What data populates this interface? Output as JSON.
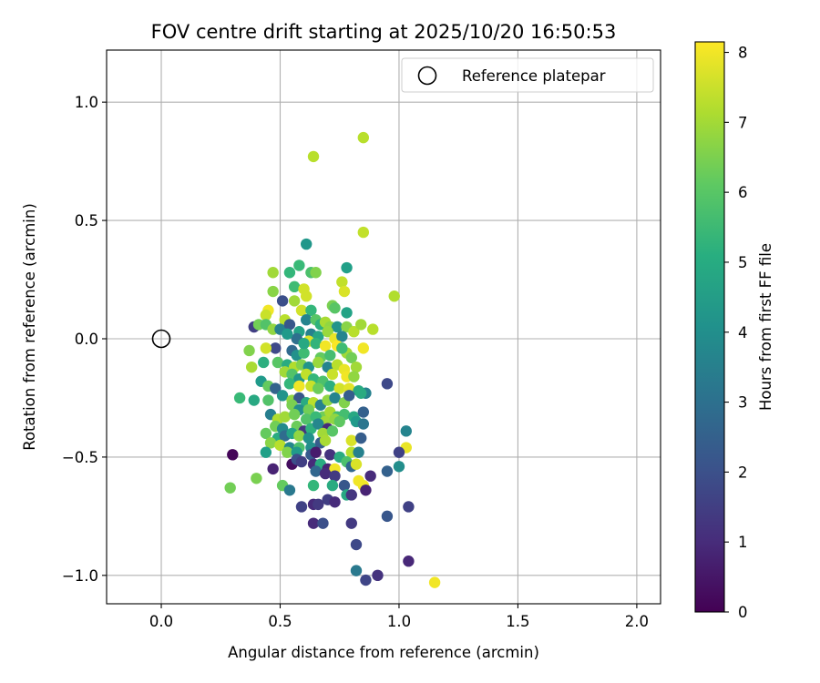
{
  "chart_data": {
    "type": "scatter",
    "title": "FOV centre drift starting at 2025/10/20 16:50:53",
    "xlabel": "Angular distance from reference (arcmin)",
    "ylabel": "Rotation from reference (arcmin)",
    "xlim": [
      -0.23,
      2.1
    ],
    "ylim": [
      -1.12,
      1.22
    ],
    "xticks": [
      0.0,
      0.5,
      1.0,
      1.5,
      2.0
    ],
    "xtick_labels": [
      "0.0",
      "0.5",
      "1.0",
      "1.5",
      "2.0"
    ],
    "yticks": [
      -1.0,
      -0.5,
      0.0,
      0.5,
      1.0
    ],
    "ytick_labels": [
      "−1.0",
      "−0.5",
      "0.0",
      "0.5",
      "1.0"
    ],
    "grid": true,
    "reference": {
      "x": 0.0,
      "y": 0.0,
      "label": "Reference platepar",
      "marker": "open-circle"
    },
    "legend": {
      "position": "upper-right",
      "entries": [
        "Reference platepar"
      ]
    },
    "colorbar": {
      "label": "Hours from first FF file",
      "colormap": "viridis",
      "range": [
        0,
        8.15
      ],
      "ticks": [
        0,
        1,
        2,
        3,
        4,
        5,
        6,
        7,
        8
      ],
      "tick_labels": [
        "0",
        "1",
        "2",
        "3",
        "4",
        "5",
        "6",
        "7",
        "8"
      ]
    },
    "points": [
      [
        0.64,
        0.77,
        7.3
      ],
      [
        0.85,
        0.85,
        7.3
      ],
      [
        0.85,
        0.45,
        7.4
      ],
      [
        0.61,
        0.4,
        4.3
      ],
      [
        0.98,
        0.18,
        7.2
      ],
      [
        0.47,
        0.28,
        7.0
      ],
      [
        0.58,
        0.31,
        5.5
      ],
      [
        0.54,
        0.28,
        5.4
      ],
      [
        0.63,
        0.28,
        5.8
      ],
      [
        0.65,
        0.28,
        6.6
      ],
      [
        0.78,
        0.3,
        4.6
      ],
      [
        0.76,
        0.24,
        7.4
      ],
      [
        0.56,
        0.22,
        5.6
      ],
      [
        0.6,
        0.21,
        7.6
      ],
      [
        0.77,
        0.2,
        7.7
      ],
      [
        0.47,
        0.2,
        6.7
      ],
      [
        0.61,
        0.18,
        7.6
      ],
      [
        0.51,
        0.16,
        2.0
      ],
      [
        0.56,
        0.16,
        7.0
      ],
      [
        0.72,
        0.14,
        6.5
      ],
      [
        0.73,
        0.13,
        6.0
      ],
      [
        0.59,
        0.12,
        7.6
      ],
      [
        0.63,
        0.12,
        5.4
      ],
      [
        0.78,
        0.11,
        4.7
      ],
      [
        0.45,
        0.12,
        8.0
      ],
      [
        0.44,
        0.1,
        7.5
      ],
      [
        0.52,
        0.08,
        7.3
      ],
      [
        0.61,
        0.08,
        3.7
      ],
      [
        0.65,
        0.08,
        6.0
      ],
      [
        0.67,
        0.06,
        5.2
      ],
      [
        0.69,
        0.07,
        7.1
      ],
      [
        0.71,
        0.05,
        6.8
      ],
      [
        0.74,
        0.05,
        4.2
      ],
      [
        0.78,
        0.05,
        6.7
      ],
      [
        0.81,
        0.03,
        7.3
      ],
      [
        0.84,
        0.06,
        7.0
      ],
      [
        0.89,
        0.04,
        7.3
      ],
      [
        0.39,
        0.05,
        1.5
      ],
      [
        0.41,
        0.06,
        6.4
      ],
      [
        0.44,
        0.06,
        5.9
      ],
      [
        0.47,
        0.04,
        6.8
      ],
      [
        0.5,
        0.04,
        3.6
      ],
      [
        0.54,
        0.06,
        2.2
      ],
      [
        0.58,
        0.03,
        4.7
      ],
      [
        0.63,
        0.02,
        3.6
      ],
      [
        0.66,
        0.01,
        4.8
      ],
      [
        0.7,
        0.03,
        6.9
      ],
      [
        0.73,
        0.0,
        7.9
      ],
      [
        0.76,
        0.01,
        3.7
      ],
      [
        0.74,
        -0.03,
        8.1
      ],
      [
        0.62,
        -0.01,
        7.7
      ],
      [
        0.65,
        -0.02,
        5.3
      ],
      [
        0.69,
        -0.03,
        8.0
      ],
      [
        0.48,
        -0.04,
        1.8
      ],
      [
        0.44,
        -0.04,
        7.6
      ],
      [
        0.37,
        -0.05,
        6.6
      ],
      [
        0.55,
        -0.05,
        2.8
      ],
      [
        0.57,
        -0.07,
        4.1
      ],
      [
        0.6,
        -0.06,
        5.6
      ],
      [
        0.67,
        -0.08,
        6.2
      ],
      [
        0.71,
        -0.07,
        5.7
      ],
      [
        0.78,
        -0.06,
        7.0
      ],
      [
        0.85,
        -0.04,
        8.0
      ],
      [
        0.8,
        -0.08,
        6.4
      ],
      [
        0.43,
        -0.1,
        5.1
      ],
      [
        0.49,
        -0.1,
        6.0
      ],
      [
        0.53,
        -0.11,
        5.0
      ],
      [
        0.56,
        -0.12,
        7.2
      ],
      [
        0.59,
        -0.11,
        6.6
      ],
      [
        0.62,
        -0.12,
        4.2
      ],
      [
        0.66,
        -0.1,
        6.9
      ],
      [
        0.7,
        -0.12,
        3.7
      ],
      [
        0.74,
        -0.11,
        7.3
      ],
      [
        0.77,
        -0.13,
        7.9
      ],
      [
        0.82,
        -0.12,
        7.0
      ],
      [
        0.38,
        -0.12,
        7.1
      ],
      [
        0.52,
        -0.14,
        7.0
      ],
      [
        0.55,
        -0.15,
        5.9
      ],
      [
        0.58,
        -0.17,
        4.3
      ],
      [
        0.61,
        -0.15,
        7.4
      ],
      [
        0.64,
        -0.17,
        5.4
      ],
      [
        0.68,
        -0.18,
        5.8
      ],
      [
        0.72,
        -0.15,
        7.5
      ],
      [
        0.78,
        -0.16,
        8.0
      ],
      [
        0.81,
        -0.16,
        6.8
      ],
      [
        0.42,
        -0.18,
        4.4
      ],
      [
        0.45,
        -0.2,
        6.2
      ],
      [
        0.48,
        -0.21,
        2.6
      ],
      [
        0.54,
        -0.19,
        5.4
      ],
      [
        0.58,
        -0.2,
        8.0
      ],
      [
        0.63,
        -0.2,
        7.5
      ],
      [
        0.66,
        -0.21,
        6.3
      ],
      [
        0.71,
        -0.2,
        5.1
      ],
      [
        0.75,
        -0.21,
        7.6
      ],
      [
        0.79,
        -0.21,
        7.8
      ],
      [
        0.83,
        -0.22,
        4.9
      ],
      [
        0.86,
        -0.23,
        3.6
      ],
      [
        0.95,
        -0.19,
        1.8
      ],
      [
        0.33,
        -0.25,
        5.5
      ],
      [
        0.39,
        -0.26,
        4.9
      ],
      [
        0.45,
        -0.26,
        5.9
      ],
      [
        0.51,
        -0.24,
        4.2
      ],
      [
        0.55,
        -0.26,
        6.8
      ],
      [
        0.58,
        -0.25,
        2.2
      ],
      [
        0.61,
        -0.27,
        5.0
      ],
      [
        0.64,
        -0.27,
        7.3
      ],
      [
        0.67,
        -0.28,
        3.6
      ],
      [
        0.7,
        -0.26,
        6.8
      ],
      [
        0.73,
        -0.25,
        3.7
      ],
      [
        0.77,
        -0.27,
        6.6
      ],
      [
        0.79,
        -0.24,
        2.4
      ],
      [
        0.84,
        -0.23,
        5.0
      ],
      [
        0.55,
        -0.28,
        6.5
      ],
      [
        0.58,
        -0.3,
        4.0
      ],
      [
        0.62,
        -0.3,
        6.4
      ],
      [
        0.68,
        -0.33,
        6.4
      ],
      [
        0.71,
        -0.31,
        7.1
      ],
      [
        0.74,
        -0.33,
        5.6
      ],
      [
        0.77,
        -0.32,
        5.7
      ],
      [
        0.81,
        -0.33,
        4.9
      ],
      [
        0.85,
        -0.31,
        2.5
      ],
      [
        0.46,
        -0.32,
        3.5
      ],
      [
        0.49,
        -0.34,
        7.2
      ],
      [
        0.52,
        -0.33,
        7.0
      ],
      [
        0.56,
        -0.32,
        6.4
      ],
      [
        0.61,
        -0.34,
        5.9
      ],
      [
        0.65,
        -0.33,
        5.5
      ],
      [
        0.69,
        -0.35,
        7.0
      ],
      [
        0.73,
        -0.34,
        6.8
      ],
      [
        0.75,
        -0.35,
        6.1
      ],
      [
        0.82,
        -0.35,
        4.4
      ],
      [
        0.85,
        -0.36,
        3.2
      ],
      [
        0.48,
        -0.37,
        6.4
      ],
      [
        0.51,
        -0.38,
        3.9
      ],
      [
        0.57,
        -0.37,
        6.3
      ],
      [
        0.6,
        -0.39,
        1.3
      ],
      [
        0.63,
        -0.38,
        5.2
      ],
      [
        0.66,
        -0.36,
        3.8
      ],
      [
        0.7,
        -0.38,
        1.0
      ],
      [
        0.44,
        -0.4,
        6.2
      ],
      [
        0.49,
        -0.42,
        5.0
      ],
      [
        0.52,
        -0.41,
        2.9
      ],
      [
        0.55,
        -0.4,
        4.7
      ],
      [
        0.58,
        -0.41,
        6.8
      ],
      [
        0.62,
        -0.42,
        4.1
      ],
      [
        0.68,
        -0.4,
        7.0
      ],
      [
        0.72,
        -0.39,
        6.0
      ],
      [
        1.03,
        -0.39,
        3.7
      ],
      [
        0.46,
        -0.44,
        6.7
      ],
      [
        0.5,
        -0.45,
        7.3
      ],
      [
        0.54,
        -0.46,
        3.8
      ],
      [
        0.58,
        -0.46,
        5.8
      ],
      [
        0.63,
        -0.46,
        4.0
      ],
      [
        0.67,
        -0.44,
        2.4
      ],
      [
        0.69,
        -0.43,
        7.1
      ],
      [
        0.8,
        -0.43,
        7.7
      ],
      [
        0.84,
        -0.42,
        2.4
      ],
      [
        1.03,
        -0.46,
        7.9
      ],
      [
        0.3,
        -0.49,
        0.1
      ],
      [
        0.44,
        -0.48,
        4.6
      ],
      [
        0.53,
        -0.48,
        6.6
      ],
      [
        0.57,
        -0.48,
        4.4
      ],
      [
        0.63,
        -0.49,
        2.3
      ],
      [
        0.65,
        -0.48,
        0.6
      ],
      [
        0.71,
        -0.49,
        1.2
      ],
      [
        0.75,
        -0.5,
        5.0
      ],
      [
        0.8,
        -0.48,
        7.3
      ],
      [
        0.83,
        -0.48,
        3.6
      ],
      [
        1.0,
        -0.48,
        1.6
      ],
      [
        0.47,
        -0.55,
        0.8
      ],
      [
        0.55,
        -0.53,
        0.3
      ],
      [
        0.57,
        -0.51,
        2.0
      ],
      [
        0.59,
        -0.52,
        1.5
      ],
      [
        0.64,
        -0.53,
        1.0
      ],
      [
        0.67,
        -0.53,
        5.0
      ],
      [
        0.7,
        -0.55,
        0.8
      ],
      [
        0.73,
        -0.55,
        8.0
      ],
      [
        0.78,
        -0.52,
        5.8
      ],
      [
        0.8,
        -0.54,
        2.7
      ],
      [
        0.82,
        -0.53,
        7.7
      ],
      [
        0.65,
        -0.56,
        2.7
      ],
      [
        0.69,
        -0.57,
        1.0
      ],
      [
        0.73,
        -0.58,
        1.4
      ],
      [
        0.88,
        -0.58,
        1.0
      ],
      [
        0.95,
        -0.56,
        2.5
      ],
      [
        1.0,
        -0.54,
        4.0
      ],
      [
        0.83,
        -0.6,
        8.0
      ],
      [
        0.85,
        -0.62,
        8.0
      ],
      [
        0.51,
        -0.62,
        6.2
      ],
      [
        0.54,
        -0.64,
        3.3
      ],
      [
        0.64,
        -0.62,
        5.4
      ],
      [
        0.72,
        -0.62,
        5.0
      ],
      [
        0.77,
        -0.62,
        2.2
      ],
      [
        0.4,
        -0.59,
        6.5
      ],
      [
        0.29,
        -0.63,
        6.4
      ],
      [
        0.86,
        -0.64,
        0.8
      ],
      [
        0.78,
        -0.66,
        4.9
      ],
      [
        0.8,
        -0.66,
        1.3
      ],
      [
        0.7,
        -0.68,
        1.5
      ],
      [
        0.73,
        -0.69,
        1.0
      ],
      [
        0.59,
        -0.71,
        1.6
      ],
      [
        0.64,
        -0.7,
        1.0
      ],
      [
        0.66,
        -0.7,
        1.4
      ],
      [
        1.04,
        -0.71,
        1.6
      ],
      [
        0.95,
        -0.75,
        2.2
      ],
      [
        0.64,
        -0.78,
        1.0
      ],
      [
        0.68,
        -0.78,
        2.0
      ],
      [
        0.8,
        -0.78,
        1.4
      ],
      [
        0.82,
        -0.87,
        1.8
      ],
      [
        1.04,
        -0.94,
        0.9
      ],
      [
        0.82,
        -0.98,
        3.3
      ],
      [
        0.86,
        -1.02,
        1.7
      ],
      [
        0.91,
        -1.0,
        1.2
      ],
      [
        1.15,
        -1.03,
        8.0
      ],
      [
        0.76,
        -0.04,
        5.6
      ],
      [
        0.57,
        0.0,
        3.0
      ],
      [
        0.6,
        -0.02,
        4.9
      ],
      [
        0.53,
        0.02,
        4.4
      ]
    ]
  }
}
